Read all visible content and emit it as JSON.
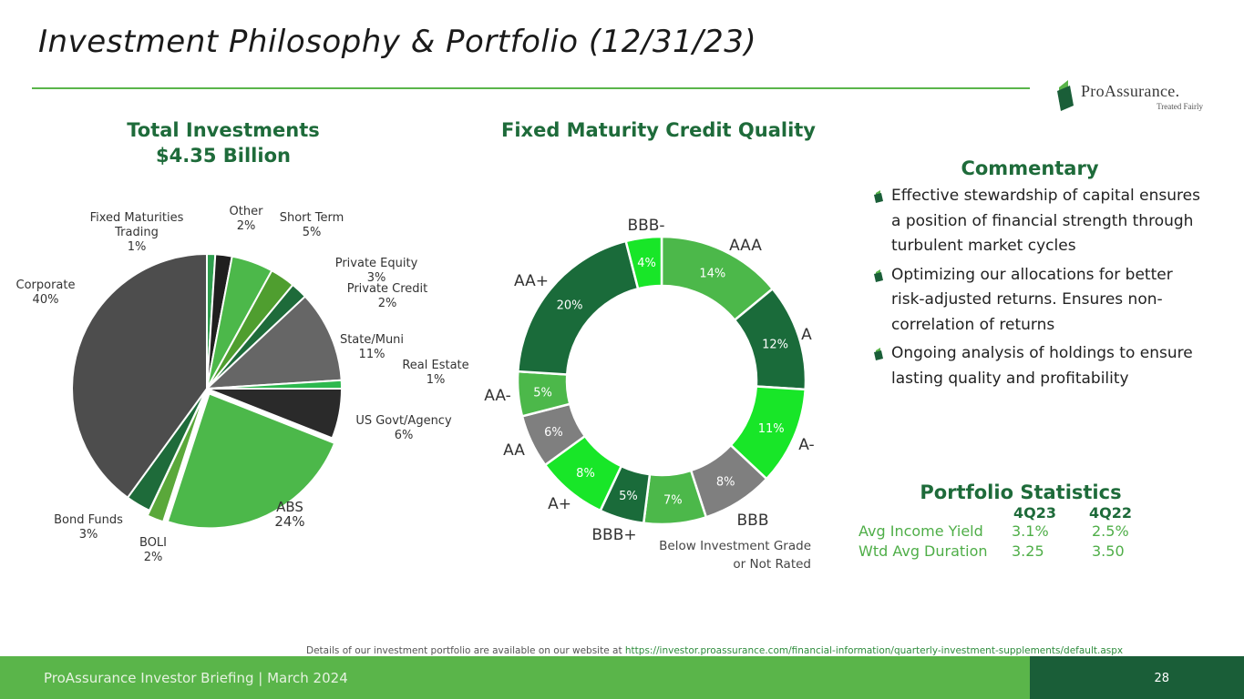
{
  "slide": {
    "title": "Investment Philosophy & Portfolio (12/31/23)"
  },
  "logo": {
    "name": "ProAssurance.",
    "tagline": "Treated Fairly",
    "colors": {
      "dark": "#1a5e38",
      "light": "#5ab54a"
    }
  },
  "total_investments": {
    "title_line1": "Total Investments",
    "title_line2": "$4.35 Billion"
  },
  "credit_quality": {
    "title": "Fixed Maturity Credit Quality",
    "note_line1": "Below Investment Grade",
    "note_line2": "or Not Rated"
  },
  "chart_data": [
    {
      "type": "pie",
      "title": "Total Investments $4.35 Billion",
      "slices": [
        {
          "label": "Fixed Maturities Trading",
          "value": 1,
          "pct": "1%",
          "color": "#2e9e4e"
        },
        {
          "label": "Other",
          "value": 2,
          "pct": "2%",
          "color": "#1f1f1f"
        },
        {
          "label": "Short Term",
          "value": 5,
          "pct": "5%",
          "color": "#4cb84a"
        },
        {
          "label": "Private Equity",
          "value": 3,
          "pct": "3%",
          "color": "#4f9e2f"
        },
        {
          "label": "Private Credit",
          "value": 2,
          "pct": "2%",
          "color": "#1e6b3a"
        },
        {
          "label": "State/Muni",
          "value": 11,
          "pct": "11%",
          "color": "#666666"
        },
        {
          "label": "Real Estate",
          "value": 1,
          "pct": "1%",
          "color": "#2db84e"
        },
        {
          "label": "US Govt/Agency",
          "value": 6,
          "pct": "6%",
          "color": "#2a2a2a"
        },
        {
          "label": "ABS",
          "value": 24,
          "pct": "24%",
          "color": "#4cb84a"
        },
        {
          "label": "BOLI",
          "value": 2,
          "pct": "2%",
          "color": "#5aa83a"
        },
        {
          "label": "Bond Funds",
          "value": 3,
          "pct": "3%",
          "color": "#1e6b3a"
        },
        {
          "label": "Corporate",
          "value": 40,
          "pct": "40%",
          "color": "#4d4d4d"
        }
      ]
    },
    {
      "type": "pie",
      "title": "Fixed Maturity Credit Quality",
      "slices": [
        {
          "label": "AAA",
          "value": 14,
          "pct": "14%",
          "color": "#4cb84a"
        },
        {
          "label": "A",
          "value": 12,
          "pct": "12%",
          "color": "#1a6b3a"
        },
        {
          "label": "A-",
          "value": 11,
          "pct": "11%",
          "color": "#18e628"
        },
        {
          "label": "BBB",
          "value": 8,
          "pct": "8%",
          "color": "#7f7f7f"
        },
        {
          "label": "",
          "value": 7,
          "pct": "7%",
          "color": "#4cb84a"
        },
        {
          "label": "BBB+",
          "value": 5,
          "pct": "5%",
          "color": "#1a6b3a"
        },
        {
          "label": "A+",
          "value": 8,
          "pct": "8%",
          "color": "#18e628"
        },
        {
          "label": "AA",
          "value": 6,
          "pct": "6%",
          "color": "#7f7f7f"
        },
        {
          "label": "AA-",
          "value": 5,
          "pct": "5%",
          "color": "#4cb84a"
        },
        {
          "label": "AA+",
          "value": 20,
          "pct": "20%",
          "color": "#1a6b3a"
        },
        {
          "label": "BBB-",
          "value": 4,
          "pct": "4%",
          "color": "#18e628"
        }
      ]
    }
  ],
  "commentary": {
    "title": "Commentary",
    "items": [
      "Effective stewardship of capital ensures a position of financial strength through turbulent market cycles",
      "Optimizing our allocations for better risk-adjusted returns. Ensures non-correlation of returns",
      "Ongoing analysis of holdings to ensure lasting quality and profitability"
    ]
  },
  "portfolio_statistics": {
    "title": "Portfolio Statistics",
    "col1": "4Q23",
    "col2": "4Q22",
    "rows": [
      {
        "label": "Avg Income Yield",
        "v1": "3.1%",
        "v2": "2.5%"
      },
      {
        "label": "Wtd Avg Duration",
        "v1": "3.25",
        "v2": "3.50"
      }
    ]
  },
  "footnote": {
    "text": "Details of our investment portfolio are available on our website at ",
    "link": "https://investor.proassurance.com/financial-information/quarterly-investment-supplements/default.aspx"
  },
  "footer": {
    "text": "ProAssurance Investor Briefing | March 2024",
    "page": "28"
  }
}
